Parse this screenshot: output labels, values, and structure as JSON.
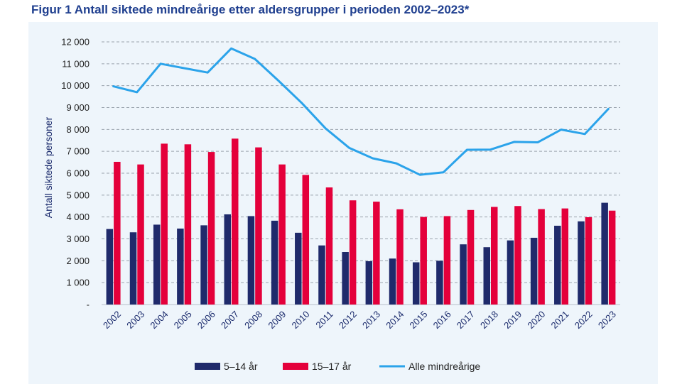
{
  "title": "Figur 1 Antall siktede mindreårige etter aldersgrupper i perioden 2002–2023*",
  "colors": {
    "title": "#1f3f8f",
    "background": "#eef5fb",
    "series_5_14": "#1f2a6b",
    "series_15_17": "#e4003b",
    "series_all": "#2ba3ea",
    "grid": "#9aa3ad"
  },
  "chart_data": {
    "type": "bar",
    "title": "Figur 1 Antall siktede mindreårige etter aldersgrupper i perioden 2002–2023*",
    "xlabel": "",
    "ylabel": "Antall siktede personer",
    "ylim": [
      0,
      12000
    ],
    "yticks": [
      "-",
      "1 000",
      "2 000",
      "3 000",
      "4 000",
      "5 000",
      "6 000",
      "7 000",
      "8 000",
      "9 000",
      "10 000",
      "11 000",
      "12 000"
    ],
    "grid": true,
    "legend_position": "bottom",
    "categories": [
      "2002",
      "2003",
      "2004",
      "2005",
      "2006",
      "2007",
      "2008",
      "2009",
      "2010",
      "2011",
      "2012",
      "2013",
      "2014",
      "2015",
      "2016",
      "2017",
      "2018",
      "2019",
      "2020",
      "2021",
      "2022",
      "2023"
    ],
    "series": [
      {
        "name": "5–14 år",
        "type": "bar",
        "values": [
          3450,
          3300,
          3650,
          3470,
          3620,
          4120,
          4040,
          3830,
          3280,
          2700,
          2400,
          1980,
          2100,
          1930,
          2000,
          2750,
          2620,
          2930,
          3050,
          3600,
          3800,
          4650
        ]
      },
      {
        "name": "15–17 år",
        "type": "bar",
        "values": [
          6520,
          6400,
          7350,
          7320,
          6970,
          7580,
          7180,
          6400,
          5920,
          5350,
          4760,
          4700,
          4350,
          4000,
          4040,
          4320,
          4460,
          4500,
          4360,
          4390,
          3990,
          4290
        ]
      },
      {
        "name": "Alle mindreårige",
        "type": "line",
        "values": [
          9970,
          9700,
          11000,
          10800,
          10600,
          11700,
          11220,
          10230,
          9200,
          8050,
          7160,
          6680,
          6450,
          5930,
          6040,
          7070,
          7080,
          7430,
          7410,
          7990,
          7790,
          8940
        ]
      }
    ]
  }
}
